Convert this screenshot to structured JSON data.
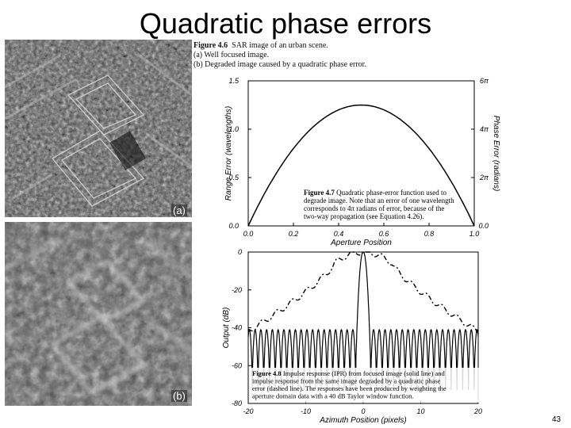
{
  "slide": {
    "title": "Quadratic phase errors",
    "page_number": "43"
  },
  "figure_4_6": {
    "number": "Figure 4.6",
    "caption_title": "SAR image of an urban scene.",
    "line_a": "(a) Well focused image.",
    "line_b": "(b) Degraded image caused by a quadratic phase error.",
    "panel_a_label": "(a)",
    "panel_b_label": "(b)"
  },
  "figure_4_7": {
    "number": "Figure 4.7",
    "caption_lines": [
      "Quadratic phase-error function used to",
      "degrade image.  Note that an error of one wavelength",
      "corresponds to 4π radians of error, because of the",
      "two-way propagation (see Equation 4.26)."
    ]
  },
  "figure_4_8": {
    "number": "Figure 4.8",
    "caption_lines": [
      "Impulse response (IPR) from focused image (solid line) and",
      "impulse response from the same image degraded by a quadratic phase",
      "error (dashed line). The responses have been produced by weighting the",
      "aperture domain data with a 40 dB Taylor window function."
    ]
  },
  "chart_data": [
    {
      "type": "line",
      "xlabel": "Aperture Position",
      "ylabel": "Range Error (wavelengths)",
      "y2label": "Phase Error (radians)",
      "xlim": [
        0.0,
        1.0
      ],
      "ylim": [
        0.0,
        1.5
      ],
      "x_ticks": [
        "0.0",
        "0.2",
        "0.4",
        "0.6",
        "0.8",
        "1.0"
      ],
      "y_ticks": [
        "0.0",
        "0.5",
        "1.0",
        "1.5"
      ],
      "y2_ticks": [
        "0.0",
        "2π",
        "4π",
        "6π"
      ],
      "grid": false,
      "series": [
        {
          "style": "solid",
          "x": [
            0.0,
            0.05,
            0.1,
            0.15,
            0.2,
            0.25,
            0.3,
            0.35,
            0.4,
            0.45,
            0.5,
            0.55,
            0.6,
            0.65,
            0.7,
            0.75,
            0.8,
            0.85,
            0.9,
            0.95,
            1.0
          ],
          "y": [
            0.0,
            0.238,
            0.45,
            0.638,
            0.8,
            0.938,
            1.05,
            1.138,
            1.2,
            1.238,
            1.25,
            1.238,
            1.2,
            1.138,
            1.05,
            0.938,
            0.8,
            0.638,
            0.45,
            0.238,
            0.0
          ]
        }
      ]
    },
    {
      "type": "line",
      "xlabel": "Azimuth Position (pixels)",
      "ylabel": "Output (dB)",
      "xlim": [
        -20,
        20
      ],
      "ylim": [
        -80,
        0
      ],
      "x_ticks": [
        "-20",
        "-10",
        "0",
        "10",
        "20"
      ],
      "y_ticks": [
        "0",
        "-20",
        "-40",
        "-60",
        "-80"
      ],
      "grid": false,
      "series": [
        {
          "style": "solid",
          "description_key": "focused",
          "mainlobe_halfwidth": 1.3,
          "sidelobe_level_db": -41,
          "sidelobe_spacing": 1.0
        },
        {
          "style": "dashed",
          "description_key": "degraded",
          "peak_db": 0,
          "edge_db": -42
        }
      ]
    }
  ]
}
